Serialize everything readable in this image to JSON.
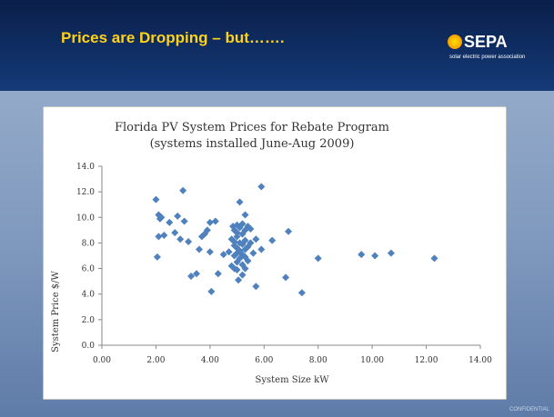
{
  "slide": {
    "title": "Prices are Dropping – but…….",
    "logo": "SEPA",
    "logo_tagline": "solar electric power association",
    "footer": "CONFIDENTIAL"
  },
  "chart_data": {
    "type": "scatter",
    "title": [
      "Florida PV System Prices for Rebate Program",
      "(systems installed June-Aug 2009)"
    ],
    "xlabel": "System Size kW",
    "ylabel": "System Price $/W",
    "xlim": [
      0,
      14
    ],
    "xticks": [
      {
        "value": 0,
        "label": "0.00"
      },
      {
        "value": 2,
        "label": "2.00"
      },
      {
        "value": 4,
        "label": "4.00"
      },
      {
        "value": 6,
        "label": "6.00"
      },
      {
        "value": 8,
        "label": "8.00"
      },
      {
        "value": 10,
        "label": "10.00"
      },
      {
        "value": 12,
        "label": "12.00"
      },
      {
        "value": 14,
        "label": "14.00"
      }
    ],
    "ylim": [
      0,
      14
    ],
    "yticks": [
      {
        "value": 0,
        "label": "0.0"
      },
      {
        "value": 2,
        "label": "2.0"
      },
      {
        "value": 4,
        "label": "4.0"
      },
      {
        "value": 6,
        "label": "6.0"
      },
      {
        "value": 8,
        "label": "8.0"
      },
      {
        "value": 10,
        "label": "10.0"
      },
      {
        "value": 12,
        "label": "12.0"
      },
      {
        "value": 14,
        "label": "14.0"
      }
    ],
    "grid": false,
    "x": [
      2.0,
      2.05,
      2.1,
      2.15,
      2.1,
      2.3,
      2.2,
      2.5,
      2.7,
      2.8,
      2.9,
      3.0,
      3.05,
      3.2,
      3.3,
      3.5,
      3.6,
      3.7,
      3.8,
      3.9,
      4.0,
      4.0,
      4.05,
      4.2,
      4.3,
      4.5,
      4.7,
      4.8,
      4.8,
      4.85,
      4.9,
      4.9,
      4.9,
      4.9,
      4.9,
      5.0,
      5.0,
      5.0,
      5.0,
      5.0,
      5.0,
      5.0,
      5.05,
      5.1,
      5.1,
      5.1,
      5.1,
      5.1,
      5.2,
      5.2,
      5.2,
      5.2,
      5.2,
      5.2,
      5.3,
      5.3,
      5.3,
      5.3,
      5.3,
      5.3,
      5.4,
      5.4,
      5.4,
      5.5,
      5.5,
      5.6,
      5.7,
      5.7,
      5.9,
      5.9,
      6.3,
      6.8,
      6.9,
      7.4,
      8.0,
      9.6,
      10.1,
      10.7,
      12.3
    ],
    "series": [
      {
        "color": "#4f81bd",
        "values": [
          11.4,
          6.9,
          10.2,
          9.9,
          8.5,
          8.6,
          10.0,
          9.6,
          8.8,
          10.1,
          8.3,
          12.1,
          9.7,
          8.1,
          5.4,
          5.6,
          7.5,
          8.5,
          8.7,
          9.0,
          9.6,
          7.3,
          4.2,
          9.7,
          5.6,
          7.1,
          7.3,
          8.3,
          6.2,
          9.3,
          9.0,
          8.1,
          7.8,
          7.0,
          6.0,
          9.4,
          8.8,
          8.5,
          7.6,
          7.2,
          6.5,
          5.9,
          5.1,
          11.2,
          9.2,
          8.0,
          7.4,
          6.8,
          9.5,
          8.7,
          7.9,
          7.1,
          6.3,
          5.5,
          10.2,
          9.0,
          8.2,
          7.5,
          6.9,
          6.0,
          9.3,
          7.7,
          6.6,
          8.0,
          9.1,
          7.2,
          8.3,
          4.6,
          12.4,
          7.5,
          8.2,
          5.3,
          8.9,
          4.1,
          6.8,
          7.1,
          7.0,
          7.2,
          6.8
        ]
      }
    ]
  }
}
